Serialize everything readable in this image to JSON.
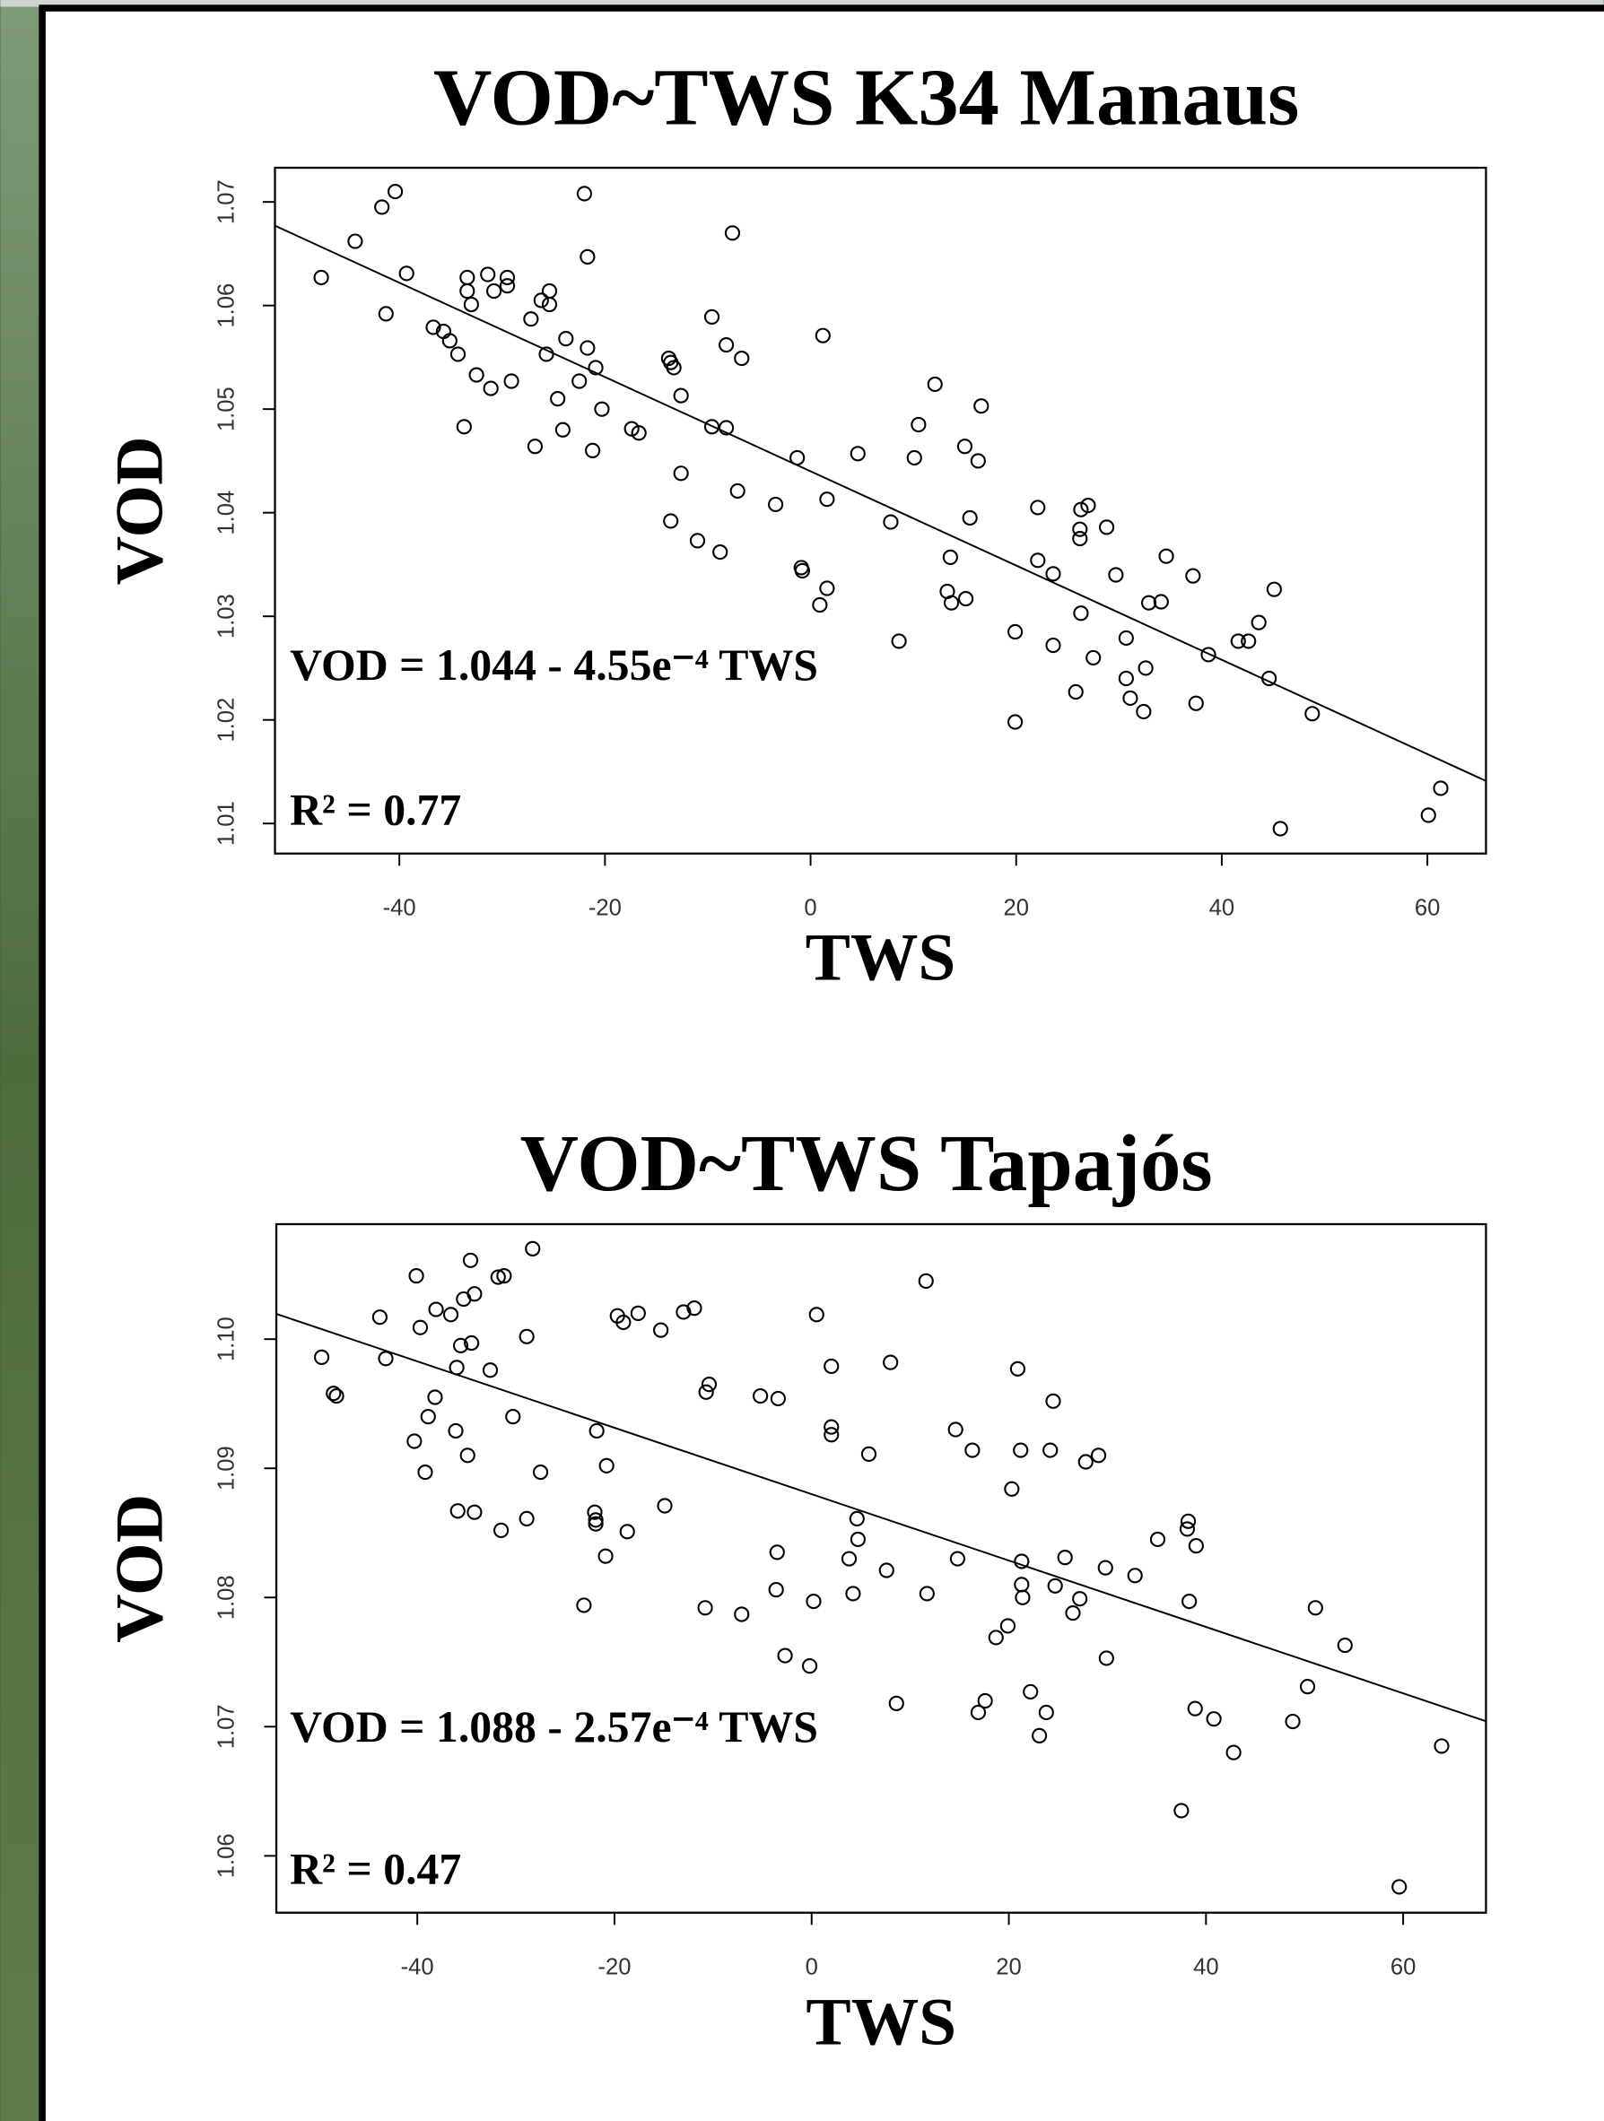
{
  "chart_data": [
    {
      "type": "scatter",
      "title": "VOD~TWS K34 Manaus",
      "x_label": "TWS",
      "y_label": "VOD",
      "annotations": [
        "VOD = 1.044 - 4.55e⁻⁴ TWS",
        "R² = 0.77"
      ],
      "trendline": {
        "intercept": 1.044,
        "slope": -0.000455
      },
      "color": "#000000",
      "xlim": [
        -52.1,
        65.7
      ],
      "ylim": [
        1.0071,
        1.0733
      ],
      "xticks": [
        -40,
        -20,
        0,
        20,
        40,
        60
      ],
      "yticks": [
        1.01,
        1.02,
        1.03,
        1.04,
        1.05,
        1.06,
        1.07
      ],
      "x": [
        -47.6,
        -44.3,
        -41.7,
        -40.4,
        -41.3,
        -39.3,
        -36.7,
        -35.7,
        -35.1,
        -34.3,
        -33.7,
        -33.4,
        -33.4,
        -33.0,
        -32.5,
        -31.4,
        -30.8,
        -31.1,
        -29.5,
        -29.5,
        -29.1,
        -27.2,
        -26.8,
        -26.2,
        -25.7,
        -25.4,
        -25.4,
        -24.6,
        -24.1,
        -23.8,
        -22.5,
        -22.0,
        -21.7,
        -21.7,
        -20.9,
        -21.2,
        -20.3,
        -17.4,
        -16.7,
        -13.8,
        -13.6,
        -13.3,
        -13.6,
        -12.6,
        -12.6,
        -11.0,
        -9.6,
        -9.6,
        -8.8,
        -8.2,
        -8.2,
        -7.6,
        -7.1,
        -6.7,
        -3.4,
        -1.3,
        -0.9,
        -0.8,
        1.2,
        0.9,
        1.6,
        1.6,
        4.6,
        7.8,
        8.6,
        10.1,
        10.5,
        12.1,
        13.3,
        13.6,
        13.7,
        15.0,
        15.1,
        15.5,
        16.3,
        16.6,
        19.9,
        19.9,
        22.1,
        22.1,
        23.6,
        23.6,
        25.8,
        26.2,
        26.2,
        26.3,
        26.3,
        27.0,
        27.5,
        28.8,
        29.7,
        30.7,
        30.7,
        31.1,
        32.4,
        32.6,
        32.9,
        34.1,
        34.6,
        37.2,
        37.5,
        38.7,
        41.6,
        42.6,
        43.6,
        44.6,
        45.1,
        45.7,
        48.8,
        60.1,
        61.3
      ],
      "values": [
        1.0627,
        1.0662,
        1.0695,
        1.071,
        1.0592,
        1.0631,
        1.0579,
        1.0575,
        1.0566,
        1.0553,
        1.0483,
        1.0627,
        1.0614,
        1.0601,
        1.0533,
        1.063,
        1.0614,
        1.052,
        1.0627,
        1.0619,
        1.0527,
        1.0587,
        1.0464,
        1.0605,
        1.0553,
        1.0614,
        1.0601,
        1.051,
        1.048,
        1.0568,
        1.0527,
        1.0708,
        1.0647,
        1.0559,
        1.054,
        1.046,
        1.05,
        1.0481,
        1.0477,
        1.0549,
        1.0545,
        1.054,
        1.0392,
        1.0438,
        1.0513,
        1.0373,
        1.0589,
        1.0483,
        1.0362,
        1.0562,
        1.0482,
        1.067,
        1.0421,
        1.0549,
        1.0408,
        1.0453,
        1.0347,
        1.0344,
        1.0571,
        1.0311,
        1.0327,
        1.0413,
        1.0457,
        1.0391,
        1.0276,
        1.0453,
        1.0485,
        1.0524,
        1.0324,
        1.0357,
        1.0313,
        1.0464,
        1.0317,
        1.0395,
        1.045,
        1.0503,
        1.0285,
        1.0198,
        1.0405,
        1.0354,
        1.0341,
        1.0272,
        1.0227,
        1.0375,
        1.0384,
        1.0403,
        1.0303,
        1.0407,
        1.026,
        1.0386,
        1.034,
        1.0279,
        1.024,
        1.0221,
        1.0208,
        1.025,
        1.0313,
        1.0314,
        1.0358,
        1.0339,
        1.0216,
        1.0263,
        1.0276,
        1.0276,
        1.0294,
        1.024,
        1.0326,
        1.0095,
        1.0206,
        1.0108,
        1.0134
      ]
    },
    {
      "type": "scatter",
      "title": "VOD~TWS Tapajós",
      "x_label": "TWS",
      "y_label": "VOD",
      "annotations": [
        "VOD = 1.088 - 2.57e⁻⁴ TWS",
        "R² = 0.47"
      ],
      "trendline": {
        "intercept": 1.088,
        "slope": -0.000257
      },
      "color": "#000000",
      "xlim": [
        -54.3,
        68.4
      ],
      "ylim": [
        1.0556,
        1.1089
      ],
      "xticks": [
        -40,
        -20,
        0,
        20,
        40,
        60
      ],
      "yticks": [
        1.06,
        1.07,
        1.08,
        1.09,
        {
          "value": 1.1,
          "label": "1.10"
        }
      ],
      "x": [
        -49.7,
        -48.5,
        -48.2,
        -43.8,
        -43.2,
        -40.1,
        -40.3,
        -39.7,
        -39.2,
        -38.9,
        -38.2,
        -38.1,
        -36.6,
        -36.1,
        -36.0,
        -35.9,
        -35.6,
        -35.3,
        -34.9,
        -34.6,
        -34.5,
        -34.2,
        -34.2,
        -32.6,
        -31.8,
        -31.5,
        -31.2,
        -30.3,
        -28.9,
        -28.9,
        -28.3,
        -27.5,
        -23.1,
        -22.0,
        -21.9,
        -21.9,
        -21.8,
        -20.9,
        -20.8,
        -19.7,
        -19.1,
        -18.7,
        -17.6,
        -15.3,
        -14.9,
        -13.0,
        -11.9,
        -10.8,
        -10.7,
        -10.4,
        -7.1,
        -5.2,
        -3.6,
        -3.5,
        -3.4,
        -2.7,
        -0.2,
        0.2,
        0.5,
        2.0,
        2.0,
        2.0,
        3.8,
        4.2,
        4.6,
        4.7,
        5.8,
        7.6,
        8.0,
        8.6,
        11.6,
        11.7,
        14.6,
        14.8,
        16.3,
        16.9,
        17.6,
        18.7,
        19.9,
        20.3,
        20.9,
        21.2,
        21.3,
        21.3,
        21.4,
        22.2,
        23.1,
        23.8,
        24.2,
        24.5,
        24.7,
        26.5,
        25.7,
        27.2,
        27.8,
        29.1,
        29.8,
        29.9,
        32.8,
        35.1,
        37.5,
        38.1,
        38.2,
        38.3,
        38.9,
        39.0,
        40.8,
        42.8,
        48.8,
        50.3,
        51.1,
        54.1,
        59.6,
        63.9
      ],
      "values": [
        1.0986,
        1.0958,
        1.0956,
        1.1017,
        1.0985,
        1.1049,
        1.0921,
        1.1009,
        1.0897,
        1.094,
        1.0955,
        1.1023,
        1.1019,
        1.0929,
        1.0978,
        1.0867,
        1.0995,
        1.1031,
        1.091,
        1.1061,
        1.0997,
        1.0866,
        1.1035,
        1.0976,
        1.1048,
        1.0852,
        1.1049,
        1.094,
        1.1002,
        1.0861,
        1.107,
        1.0897,
        1.0794,
        1.0866,
        1.086,
        1.0857,
        1.0929,
        1.0832,
        1.0902,
        1.1018,
        1.1013,
        1.0851,
        1.102,
        1.1007,
        1.0871,
        1.1021,
        1.1024,
        1.0792,
        1.0959,
        1.0965,
        1.0787,
        1.0956,
        1.0806,
        1.0835,
        1.0954,
        1.0755,
        1.0747,
        1.0797,
        1.1019,
        1.0979,
        1.0932,
        1.0926,
        1.083,
        1.0803,
        1.0861,
        1.0845,
        1.0911,
        1.0821,
        1.0982,
        1.0718,
        1.1045,
        1.0803,
        1.093,
        1.083,
        1.0914,
        1.0711,
        1.072,
        1.0769,
        1.0778,
        1.0884,
        1.0977,
        1.0914,
        1.0828,
        1.081,
        1.08,
        1.0727,
        1.0693,
        1.0711,
        1.0914,
        1.0952,
        1.0809,
        1.0788,
        1.0831,
        1.0799,
        1.0905,
        1.091,
        1.0823,
        1.0753,
        1.0817,
        1.0845,
        1.0635,
        1.0853,
        1.0859,
        1.0797,
        1.0714,
        1.084,
        1.0706,
        1.068,
        1.0704,
        1.0731,
        1.0792,
        1.0763,
        1.0576,
        1.0685
      ]
    }
  ]
}
